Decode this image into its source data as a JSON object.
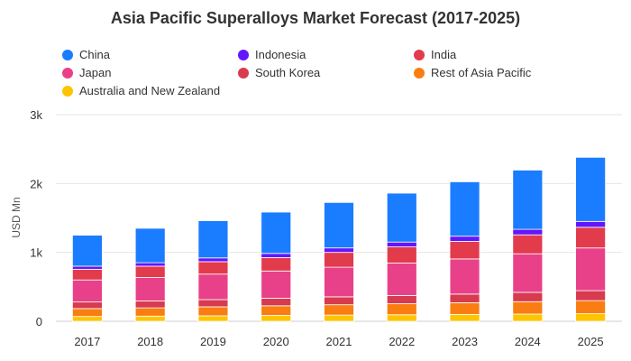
{
  "chart_data": {
    "type": "bar",
    "stacked": true,
    "title": "Asia Pacific Superalloys Market Forecast (2017-2025)",
    "xlabel": "",
    "ylabel": "USD Mn",
    "ylim": [
      0,
      3000
    ],
    "yticks": [
      {
        "value": 0,
        "label": "0"
      },
      {
        "value": 1000,
        "label": "1k"
      },
      {
        "value": 2000,
        "label": "2k"
      },
      {
        "value": 3000,
        "label": "3k"
      }
    ],
    "grid": true,
    "legend_position": "top",
    "categories": [
      "2017",
      "2018",
      "2019",
      "2020",
      "2021",
      "2022",
      "2023",
      "2024",
      "2025"
    ],
    "series": [
      {
        "name": "Australia and New Zealand",
        "color": "#ffc400",
        "values": [
          70,
          75,
          80,
          85,
          90,
          95,
          100,
          105,
          110
        ]
      },
      {
        "name": "Rest of Asia Pacific",
        "color": "#fa7d12",
        "values": [
          115,
          120,
          130,
          140,
          150,
          160,
          170,
          180,
          190
        ]
      },
      {
        "name": "South Korea",
        "color": "#d83a4f",
        "values": [
          95,
          100,
          105,
          110,
          115,
          120,
          125,
          135,
          145
        ]
      },
      {
        "name": "Japan",
        "color": "#e8418a",
        "values": [
          320,
          340,
          370,
          395,
          430,
          470,
          510,
          560,
          620
        ]
      },
      {
        "name": "India",
        "color": "#e23b4c",
        "values": [
          155,
          165,
          180,
          195,
          215,
          235,
          255,
          275,
          300
        ]
      },
      {
        "name": "Indonesia",
        "color": "#6315ff",
        "values": [
          45,
          50,
          55,
          60,
          65,
          70,
          75,
          80,
          85
        ]
      },
      {
        "name": "China",
        "color": "#1a7cff",
        "values": [
          450,
          500,
          540,
          600,
          660,
          710,
          790,
          860,
          930
        ]
      }
    ],
    "legend_order": [
      "China",
      "Indonesia",
      "India",
      "Japan",
      "South Korea",
      "Rest of Asia Pacific",
      "Australia and New Zealand"
    ]
  }
}
